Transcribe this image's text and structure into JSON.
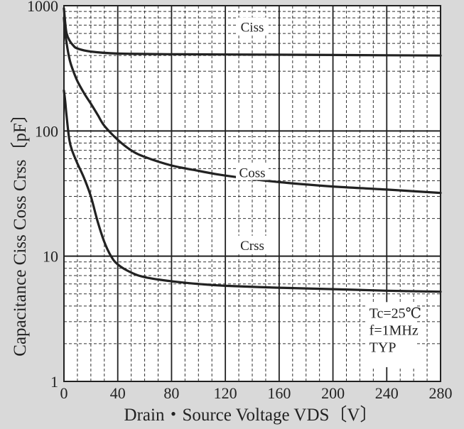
{
  "chart_data": {
    "type": "line",
    "xlabel": "Drain・Source Voltage  VDS〔V〕",
    "ylabel": "Capacitance  Ciss Coss Crss〔pF〕",
    "xscale": "linear",
    "yscale": "log",
    "xlim": [
      0,
      280
    ],
    "ylim": [
      1,
      1000
    ],
    "xticks": [
      0,
      40,
      80,
      120,
      160,
      200,
      240,
      280
    ],
    "yticks": [
      1,
      10,
      100,
      1000
    ],
    "grid": true,
    "annotations": [
      "Tc=25℃",
      "f=1MHz",
      "TYP"
    ],
    "series": [
      {
        "name": "Ciss",
        "color": "#222222",
        "x": [
          0,
          1,
          2,
          4,
          7,
          10,
          20,
          40,
          80,
          120,
          160,
          200,
          240,
          280
        ],
        "y": [
          950,
          720,
          600,
          530,
          480,
          455,
          430,
          415,
          410,
          408,
          406,
          404,
          402,
          400
        ]
      },
      {
        "name": "Coss",
        "color": "#222222",
        "x": [
          0,
          1,
          2,
          4,
          6,
          10,
          15,
          20,
          25,
          30,
          40,
          50,
          60,
          80,
          100,
          120,
          160,
          200,
          240,
          280
        ],
        "y": [
          800,
          600,
          500,
          380,
          320,
          250,
          200,
          165,
          135,
          110,
          85,
          70,
          62,
          53,
          48,
          44,
          39,
          36,
          34,
          32
        ]
      },
      {
        "name": "Crss",
        "color": "#222222",
        "x": [
          0,
          1,
          2,
          4,
          6,
          10,
          15,
          20,
          25,
          30,
          35,
          40,
          50,
          60,
          80,
          100,
          120,
          160,
          200,
          240,
          280
        ],
        "y": [
          210,
          170,
          130,
          85,
          70,
          55,
          42,
          30,
          19,
          13,
          10,
          8.6,
          7.4,
          6.8,
          6.3,
          6.0,
          5.8,
          5.6,
          5.45,
          5.3,
          5.2
        ]
      }
    ]
  }
}
